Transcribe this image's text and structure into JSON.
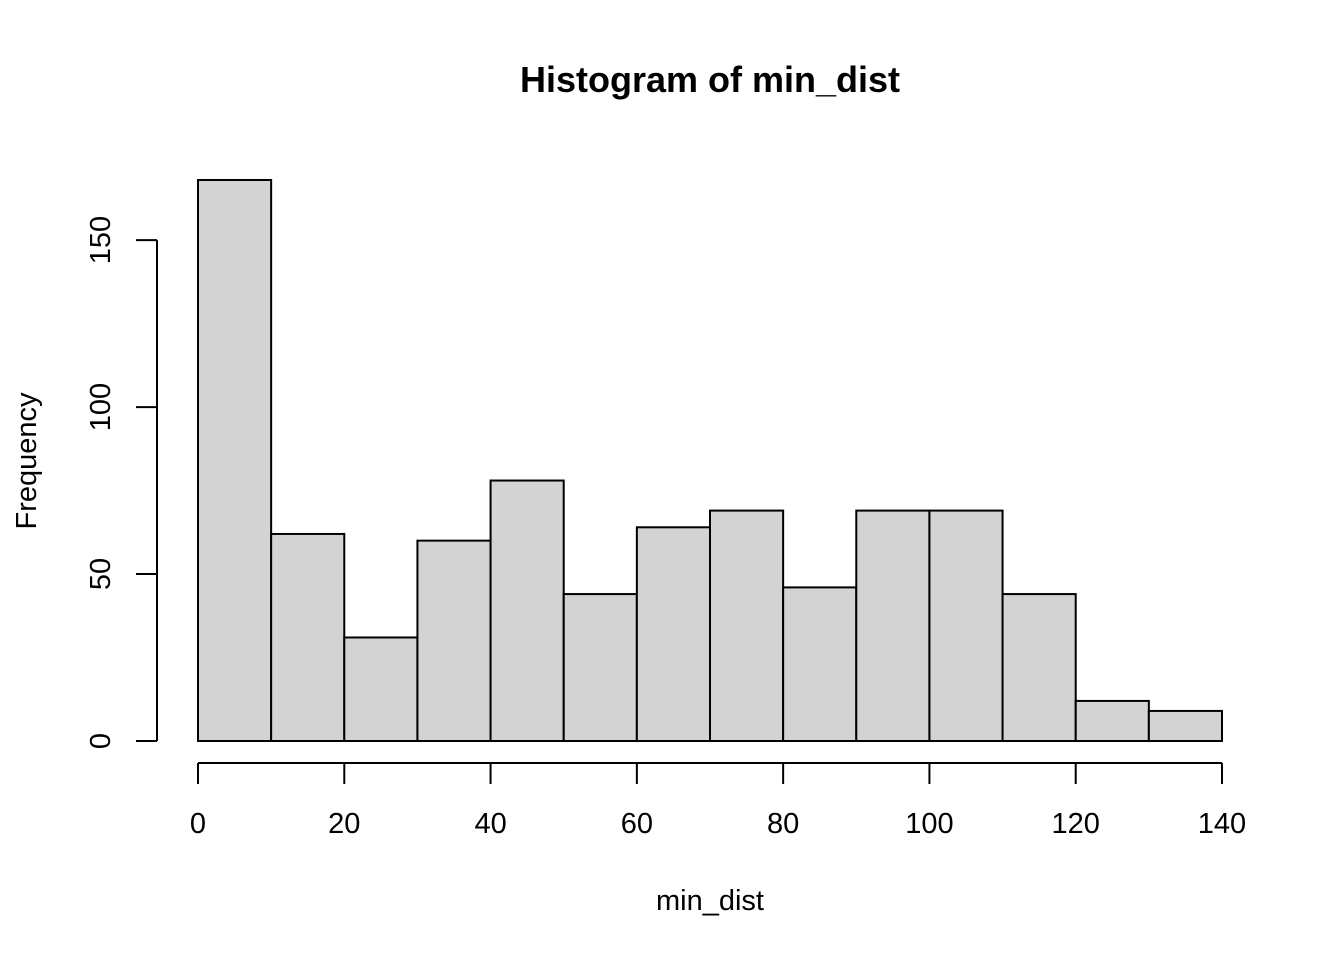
{
  "chart_data": {
    "type": "bar",
    "title": "Histogram of min_dist",
    "xlabel": "min_dist",
    "ylabel": "Frequency",
    "bins": [
      {
        "x0": 0,
        "x1": 10,
        "count": 168
      },
      {
        "x0": 10,
        "x1": 20,
        "count": 62
      },
      {
        "x0": 20,
        "x1": 30,
        "count": 31
      },
      {
        "x0": 30,
        "x1": 40,
        "count": 60
      },
      {
        "x0": 40,
        "x1": 50,
        "count": 78
      },
      {
        "x0": 50,
        "x1": 60,
        "count": 44
      },
      {
        "x0": 60,
        "x1": 70,
        "count": 64
      },
      {
        "x0": 70,
        "x1": 80,
        "count": 69
      },
      {
        "x0": 80,
        "x1": 90,
        "count": 46
      },
      {
        "x0": 90,
        "x1": 100,
        "count": 69
      },
      {
        "x0": 100,
        "x1": 110,
        "count": 69
      },
      {
        "x0": 110,
        "x1": 120,
        "count": 44
      },
      {
        "x0": 120,
        "x1": 130,
        "count": 12
      },
      {
        "x0": 130,
        "x1": 140,
        "count": 9
      }
    ],
    "x_ticks": [
      0,
      20,
      40,
      60,
      80,
      100,
      120,
      140
    ],
    "y_ticks": [
      0,
      50,
      100,
      150
    ],
    "xlim": [
      0,
      140
    ],
    "ylim": [
      0,
      168
    ],
    "grid": false,
    "legend": "none",
    "bar_color": "#d3d3d3",
    "edge_color": "#000000"
  }
}
